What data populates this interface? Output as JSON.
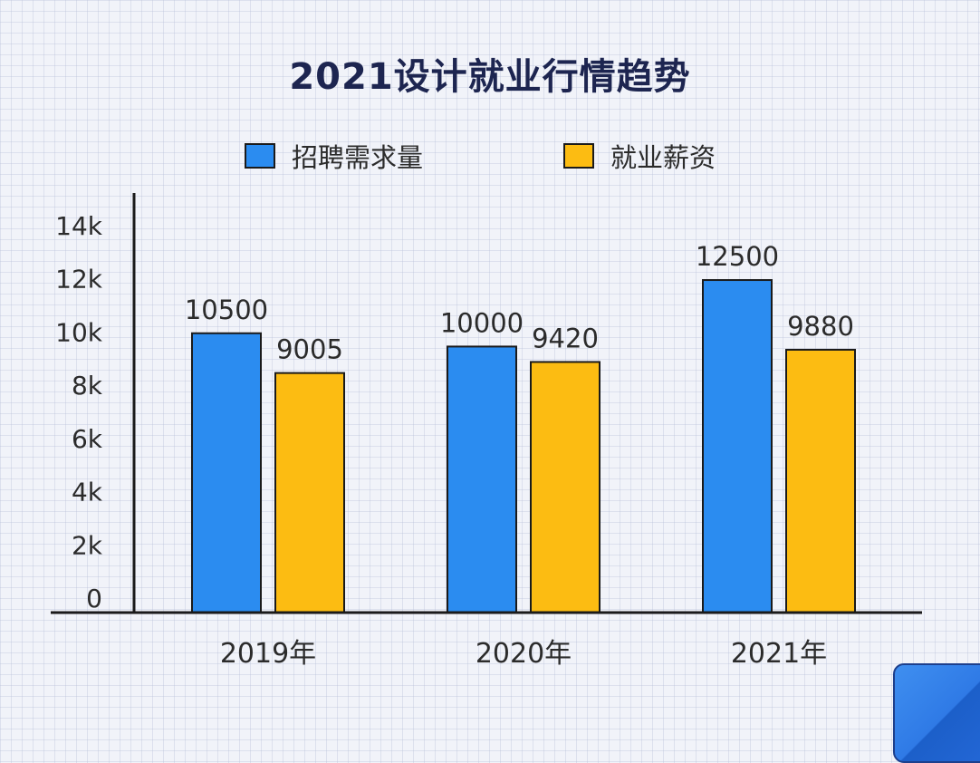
{
  "chart_data": {
    "type": "bar",
    "title": "2021设计就业行情趋势",
    "categories": [
      "2019年",
      "2020年",
      "2021年"
    ],
    "series": [
      {
        "name": "招聘需求量",
        "values": [
          10500,
          10000,
          12500
        ],
        "color": "#2b8cf0"
      },
      {
        "name": "就业薪资",
        "values": [
          9005,
          9420,
          9880
        ],
        "color": "#fcbc12"
      }
    ],
    "y_ticks": [
      {
        "label": "14k",
        "value": 14000
      },
      {
        "label": "12k",
        "value": 12000
      },
      {
        "label": "10k",
        "value": 10000
      },
      {
        "label": "8k",
        "value": 8000
      },
      {
        "label": "6k",
        "value": 6000
      },
      {
        "label": "4k",
        "value": 4000
      },
      {
        "label": "2k",
        "value": 2000
      },
      {
        "label": "0",
        "value": 0
      }
    ],
    "ylim": [
      0,
      14000
    ],
    "legend_position": "top-center",
    "grid": false,
    "xlabel": "",
    "ylabel": ""
  }
}
